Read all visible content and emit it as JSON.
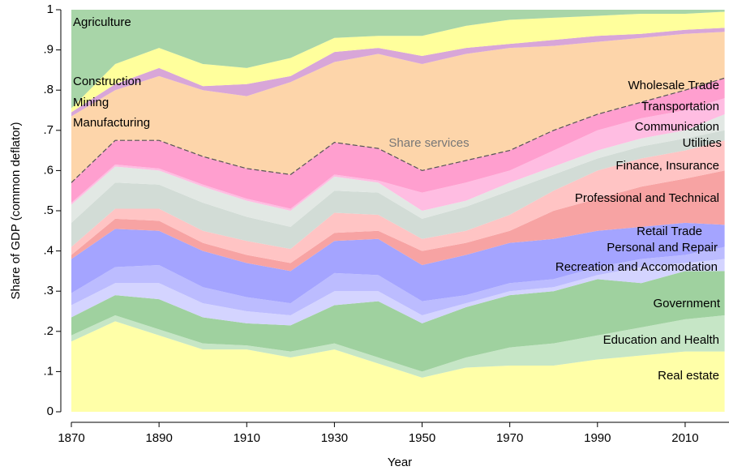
{
  "chart_data": {
    "type": "stacked-area",
    "y_label": "Share of GDP (common deflator)",
    "x_label": "Year",
    "annotation": "Share services",
    "x": [
      1870,
      1880,
      1890,
      1900,
      1910,
      1920,
      1930,
      1940,
      1950,
      1960,
      1970,
      1980,
      1990,
      2000,
      2010,
      2019
    ],
    "xlim": [
      1870,
      2020
    ],
    "xticks": [
      1870,
      1890,
      1910,
      1930,
      1950,
      1970,
      1990,
      2010
    ],
    "ylim": [
      0,
      1
    ],
    "yticks": [
      0,
      {
        "value": 0.1,
        "label": ".1"
      },
      {
        "value": 0.2,
        "label": ".2"
      },
      {
        "value": 0.3,
        "label": ".3"
      },
      {
        "value": 0.4,
        "label": ".4"
      },
      {
        "value": 0.5,
        "label": ".5"
      },
      {
        "value": 0.6,
        "label": ".6"
      },
      {
        "value": 0.7,
        "label": ".7"
      },
      {
        "value": 0.8,
        "label": ".8"
      },
      {
        "value": 0.9,
        "label": ".9"
      },
      1
    ],
    "series": [
      {
        "name": "Real estate",
        "color": "#ffffa8",
        "values": [
          0.175,
          0.225,
          0.19,
          0.155,
          0.155,
          0.135,
          0.155,
          0.12,
          0.085,
          0.11,
          0.115,
          0.115,
          0.13,
          0.14,
          0.15,
          0.15
        ]
      },
      {
        "name": "Education and Health",
        "color": "#c6e6c6",
        "values": [
          0.015,
          0.015,
          0.015,
          0.015,
          0.01,
          0.015,
          0.015,
          0.015,
          0.015,
          0.025,
          0.045,
          0.055,
          0.06,
          0.07,
          0.08,
          0.09
        ]
      },
      {
        "name": "Government",
        "color": "#9fd19f",
        "values": [
          0.045,
          0.05,
          0.075,
          0.065,
          0.055,
          0.065,
          0.095,
          0.14,
          0.12,
          0.125,
          0.13,
          0.13,
          0.14,
          0.11,
          0.12,
          0.11
        ]
      },
      {
        "name": "Recreation and Accomodation",
        "color": "#d4d4ff",
        "values": [
          0.03,
          0.03,
          0.04,
          0.035,
          0.03,
          0.025,
          0.035,
          0.025,
          0.02,
          0.01,
          0.01,
          0.01,
          0.01,
          0.04,
          0.02,
          0.03
        ]
      },
      {
        "name": "Personal and Repair",
        "color": "#bcbcff",
        "values": [
          0.03,
          0.04,
          0.045,
          0.04,
          0.035,
          0.03,
          0.045,
          0.04,
          0.035,
          0.02,
          0.02,
          0.02,
          0.02,
          0.02,
          0.02,
          0.03
        ]
      },
      {
        "name": "Retail Trade",
        "color": "#a4a4ff",
        "values": [
          0.085,
          0.095,
          0.085,
          0.09,
          0.085,
          0.08,
          0.08,
          0.09,
          0.09,
          0.1,
          0.1,
          0.1,
          0.09,
          0.08,
          0.08,
          0.055
        ]
      },
      {
        "name": "Professional and Technical",
        "color": "#f7a3a3",
        "values": [
          0.01,
          0.025,
          0.025,
          0.02,
          0.02,
          0.02,
          0.02,
          0.02,
          0.035,
          0.03,
          0.03,
          0.07,
          0.08,
          0.1,
          0.11,
          0.135
        ]
      },
      {
        "name": "Finance, Insurance",
        "color": "#ffc4c4",
        "values": [
          0.02,
          0.025,
          0.03,
          0.03,
          0.035,
          0.035,
          0.05,
          0.04,
          0.03,
          0.03,
          0.04,
          0.05,
          0.07,
          0.07,
          0.07,
          0.075
        ]
      },
      {
        "name": "Utilities",
        "color": "#d2dcd6",
        "values": [
          0.06,
          0.065,
          0.06,
          0.07,
          0.06,
          0.055,
          0.055,
          0.055,
          0.05,
          0.06,
          0.06,
          0.04,
          0.03,
          0.03,
          0.03,
          0.025
        ]
      },
      {
        "name": "Communication",
        "color": "#e2e8e4",
        "values": [
          0.045,
          0.04,
          0.035,
          0.04,
          0.04,
          0.04,
          0.035,
          0.025,
          0.02,
          0.015,
          0.02,
          0.02,
          0.02,
          0.02,
          0.02,
          0.04
        ]
      },
      {
        "name": "Transportation",
        "color": "#ffbde2",
        "values": [
          0.005,
          0.005,
          0.005,
          0.005,
          0.005,
          0.005,
          0.005,
          0.005,
          0.045,
          0.045,
          0.03,
          0.04,
          0.05,
          0.05,
          0.05,
          0.04
        ]
      },
      {
        "name": "Wholesale Trade",
        "color": "#ff9fcf",
        "values": [
          0.05,
          0.06,
          0.07,
          0.07,
          0.075,
          0.085,
          0.08,
          0.08,
          0.055,
          0.055,
          0.05,
          0.05,
          0.04,
          0.04,
          0.05,
          0.05
        ]
      },
      {
        "name": "Manufacturing",
        "color": "#fdd5aa",
        "values": [
          0.165,
          0.125,
          0.16,
          0.165,
          0.18,
          0.23,
          0.2,
          0.235,
          0.265,
          0.265,
          0.255,
          0.21,
          0.18,
          0.16,
          0.14,
          0.115
        ]
      },
      {
        "name": "Mining",
        "color": "#d8a6d8",
        "values": [
          0.01,
          0.015,
          0.02,
          0.01,
          0.03,
          0.015,
          0.025,
          0.015,
          0.02,
          0.015,
          0.01,
          0.015,
          0.015,
          0.01,
          0.01,
          0.01
        ]
      },
      {
        "name": "Construction",
        "color": "#ffff9c",
        "values": [
          0.01,
          0.05,
          0.05,
          0.055,
          0.04,
          0.045,
          0.035,
          0.03,
          0.05,
          0.055,
          0.06,
          0.055,
          0.05,
          0.05,
          0.04,
          0.04
        ]
      },
      {
        "name": "Agriculture",
        "color": "#a8d5a8",
        "values": [
          0.245,
          0.135,
          0.095,
          0.135,
          0.145,
          0.12,
          0.07,
          0.065,
          0.065,
          0.04,
          0.025,
          0.02,
          0.015,
          0.01,
          0.01,
          0.005
        ]
      }
    ]
  }
}
